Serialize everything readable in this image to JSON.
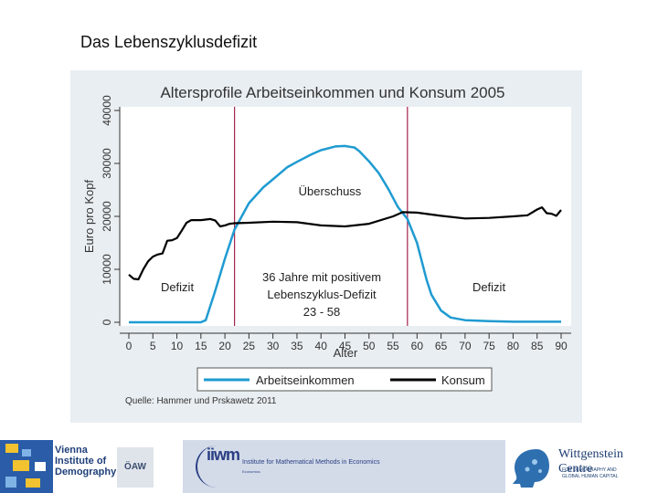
{
  "slide": {
    "title": "Das Lebenszyklusdefizit"
  },
  "chart_data": {
    "type": "line",
    "title": "Altersprofile Arbeitseinkommen und Konsum 2005",
    "xlabel": "Alter",
    "ylabel": "Euro pro Kopf",
    "xlim": [
      0,
      90
    ],
    "ylim": [
      0,
      40000
    ],
    "xticks": [
      0,
      5,
      10,
      15,
      20,
      25,
      30,
      35,
      40,
      45,
      50,
      55,
      60,
      65,
      70,
      75,
      80,
      85,
      90
    ],
    "yticks": [
      0,
      10000,
      20000,
      30000,
      40000
    ],
    "grid": false,
    "legend": "bottom",
    "vlines": [
      22,
      58
    ],
    "source": "Quelle: Hammer und Prskawetz 2011",
    "annotations": {
      "ueberschuss": "Überschuss",
      "defizit_left": "Defizit",
      "defizit_right": "Defizit",
      "center_line1": "36 Jahre mit positivem",
      "center_line2": "Lebenszyklus-Defizit",
      "center_line3": "23 - 58"
    },
    "series": [
      {
        "name": "Arbeitseinkommen",
        "color": "#1f9bd1",
        "x": [
          0,
          5,
          10,
          15,
          16,
          18,
          20,
          22,
          25,
          28,
          30,
          33,
          35,
          38,
          40,
          43,
          45,
          47,
          48,
          50,
          52,
          54,
          56,
          58,
          60,
          62,
          63,
          65,
          67,
          70,
          75,
          80,
          85,
          90
        ],
        "y": [
          0,
          0,
          0,
          0,
          400,
          6000,
          12000,
          17500,
          22500,
          25500,
          27000,
          29300,
          30300,
          31700,
          32500,
          33200,
          33300,
          33000,
          32300,
          30400,
          28200,
          25200,
          21800,
          19500,
          15000,
          8000,
          5200,
          2200,
          900,
          400,
          200,
          100,
          100,
          100
        ]
      },
      {
        "name": "Konsum",
        "color": "#000000",
        "x": [
          0,
          1,
          2,
          3,
          4,
          5,
          6,
          7,
          8,
          9,
          10,
          11,
          12,
          13,
          14,
          15,
          16,
          17,
          18,
          19,
          20,
          21,
          22,
          25,
          30,
          35,
          40,
          45,
          50,
          55,
          57,
          60,
          65,
          70,
          75,
          80,
          83,
          85,
          86,
          87,
          88,
          89,
          90
        ],
        "y": [
          9000,
          8200,
          8100,
          10000,
          11500,
          12400,
          12800,
          13000,
          15400,
          15500,
          15900,
          17300,
          18800,
          19300,
          19300,
          19300,
          19400,
          19500,
          19200,
          18100,
          18300,
          18600,
          18700,
          18800,
          19000,
          18900,
          18300,
          18100,
          18600,
          20000,
          20800,
          20700,
          20100,
          19600,
          19700,
          20000,
          20200,
          21300,
          21700,
          20600,
          20500,
          20100,
          21200
        ]
      }
    ]
  },
  "footer": {
    "vid_line1": "Vienna",
    "vid_line2": "Institute of",
    "vid_line3": "Demography",
    "oaw": "ÖAW",
    "iiwm_logo": "iiwm",
    "iiwm_label": "Institute for Mathematical Methods in Economics",
    "iiwm_sub": "Economics",
    "wc_title": "Wittgenstein Centre",
    "wc_sub1": "FOR DEMOGRAPHY AND",
    "wc_sub2": "GLOBAL HUMAN CAPITAL"
  }
}
